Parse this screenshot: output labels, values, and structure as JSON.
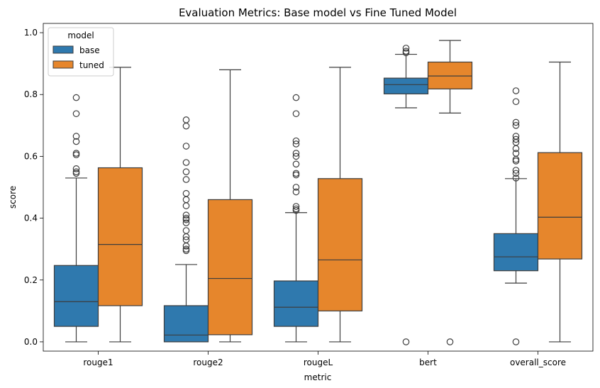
{
  "chart_data": {
    "type": "box",
    "title": "Evaluation Metrics: Base model vs Fine Tuned Model",
    "xlabel": "metric",
    "ylabel": "score",
    "ylim": [
      -0.03,
      1.03
    ],
    "yticks": [
      0.0,
      0.2,
      0.4,
      0.6,
      0.8,
      1.0
    ],
    "ytick_labels": [
      "0.0",
      "0.2",
      "0.4",
      "0.6",
      "0.8",
      "1.0"
    ],
    "grid": false,
    "categories": [
      "rouge1",
      "rouge2",
      "rougeL",
      "bert",
      "overall_score"
    ],
    "legend": {
      "title": "model",
      "position": "top-left"
    },
    "series": [
      {
        "name": "base",
        "color": "#2f79ae",
        "boxes": [
          {
            "whisker_low": 0.0,
            "q1": 0.05,
            "median": 0.13,
            "q3": 0.247,
            "whisker_high": 0.53,
            "outliers": [
              0.79,
              0.738,
              0.665,
              0.648,
              0.61,
              0.605,
              0.56,
              0.55,
              0.545
            ]
          },
          {
            "whisker_low": 0.0,
            "q1": 0.0,
            "median": 0.022,
            "q3": 0.117,
            "whisker_high": 0.25,
            "outliers": [
              0.718,
              0.698,
              0.633,
              0.58,
              0.55,
              0.525,
              0.48,
              0.46,
              0.44,
              0.41,
              0.4,
              0.395,
              0.385,
              0.36,
              0.34,
              0.33,
              0.31,
              0.3,
              0.295
            ]
          },
          {
            "whisker_low": 0.0,
            "q1": 0.05,
            "median": 0.112,
            "q3": 0.197,
            "whisker_high": 0.418,
            "outliers": [
              0.79,
              0.738,
              0.65,
              0.64,
              0.61,
              0.6,
              0.575,
              0.545,
              0.54,
              0.5,
              0.485,
              0.438,
              0.43,
              0.425
            ]
          },
          {
            "whisker_low": 0.757,
            "q1": 0.802,
            "median": 0.832,
            "q3": 0.853,
            "whisker_high": 0.93,
            "outliers": [
              0.95,
              0.94,
              0.935,
              0.0
            ]
          },
          {
            "whisker_low": 0.19,
            "q1": 0.23,
            "median": 0.275,
            "q3": 0.35,
            "whisker_high": 0.528,
            "outliers": [
              0.812,
              0.777,
              0.71,
              0.7,
              0.665,
              0.655,
              0.645,
              0.625,
              0.61,
              0.59,
              0.585,
              0.555,
              0.545,
              0.53,
              0.0
            ]
          }
        ]
      },
      {
        "name": "tuned",
        "color": "#e6862c",
        "boxes": [
          {
            "whisker_low": 0.0,
            "q1": 0.117,
            "median": 0.315,
            "q3": 0.563,
            "whisker_high": 0.888,
            "outliers": []
          },
          {
            "whisker_low": 0.0,
            "q1": 0.023,
            "median": 0.205,
            "q3": 0.46,
            "whisker_high": 0.88,
            "outliers": []
          },
          {
            "whisker_low": 0.0,
            "q1": 0.1,
            "median": 0.265,
            "q3": 0.528,
            "whisker_high": 0.888,
            "outliers": []
          },
          {
            "whisker_low": 0.74,
            "q1": 0.818,
            "median": 0.86,
            "q3": 0.905,
            "whisker_high": 0.975,
            "outliers": [
              0.0
            ]
          },
          {
            "whisker_low": 0.0,
            "q1": 0.268,
            "median": 0.403,
            "q3": 0.612,
            "whisker_high": 0.905,
            "outliers": []
          }
        ]
      }
    ]
  }
}
